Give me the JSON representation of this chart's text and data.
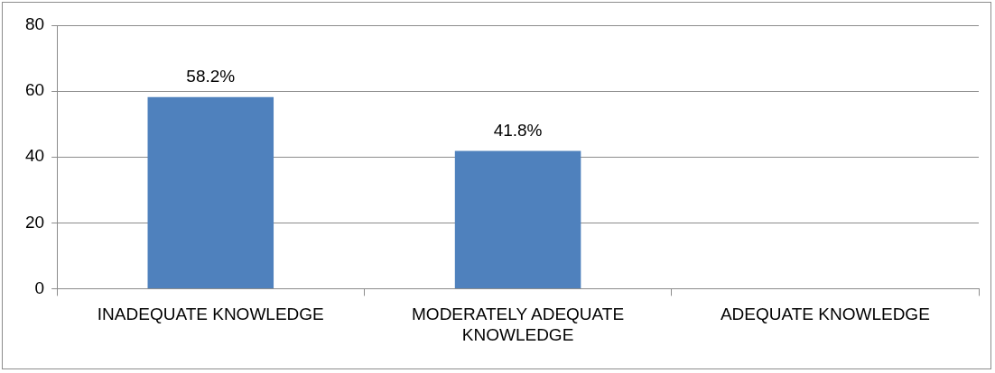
{
  "chart_data": {
    "type": "bar",
    "categories": [
      "INADEQUATE KNOWLEDGE",
      "MODERATELY ADEQUATE KNOWLEDGE",
      "ADEQUATE KNOWLEDGE"
    ],
    "values": [
      58.2,
      41.8,
      0
    ],
    "value_labels": [
      "58.2%",
      "41.8%",
      null
    ],
    "color": "#4f81bd",
    "ylim": [
      0,
      80
    ],
    "yticks": [
      0,
      20,
      40,
      60,
      80
    ],
    "grid": "y",
    "legend": false
  }
}
